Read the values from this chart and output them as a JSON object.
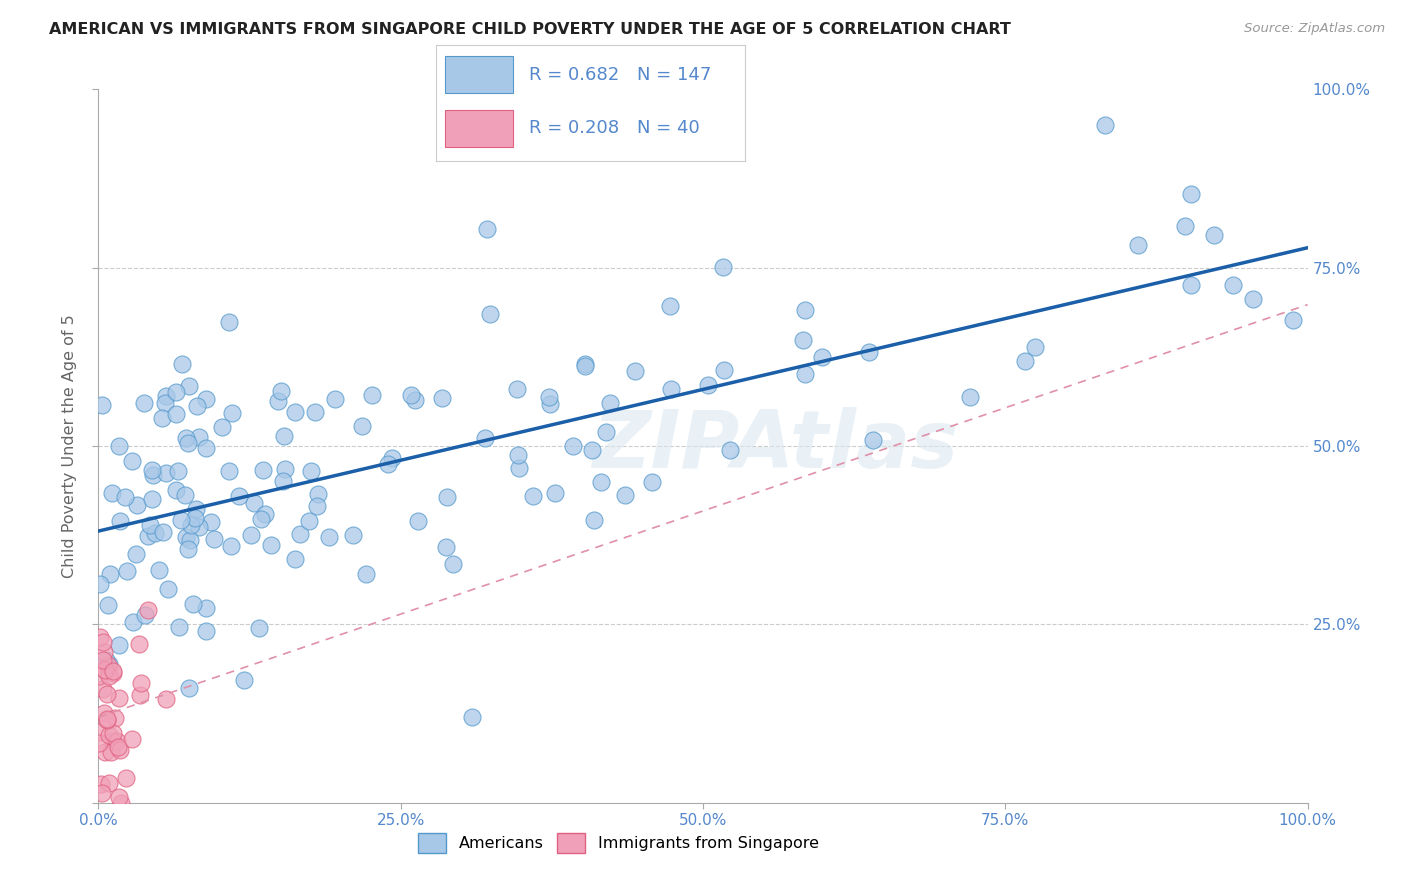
{
  "title": "AMERICAN VS IMMIGRANTS FROM SINGAPORE CHILD POVERTY UNDER THE AGE OF 5 CORRELATION CHART",
  "source": "Source: ZipAtlas.com",
  "ylabel": "Child Poverty Under the Age of 5",
  "watermark": "ZIPAtlas",
  "legend_R_americans": "0.682",
  "legend_N_americans": "147",
  "legend_R_singapore": "0.208",
  "legend_N_singapore": "40",
  "american_color": "#a8c8e8",
  "american_edge": "#5599cc",
  "singapore_color": "#f0a0b8",
  "singapore_edge": "#e06080",
  "regression_line_color": "#1a5fa8",
  "regression_dashed_color": "#e090a8",
  "background_color": "#ffffff",
  "grid_color": "#cccccc",
  "tick_color": "#5588cc",
  "xlim": [
    0.0,
    1.0
  ],
  "ylim": [
    0.0,
    1.0
  ]
}
